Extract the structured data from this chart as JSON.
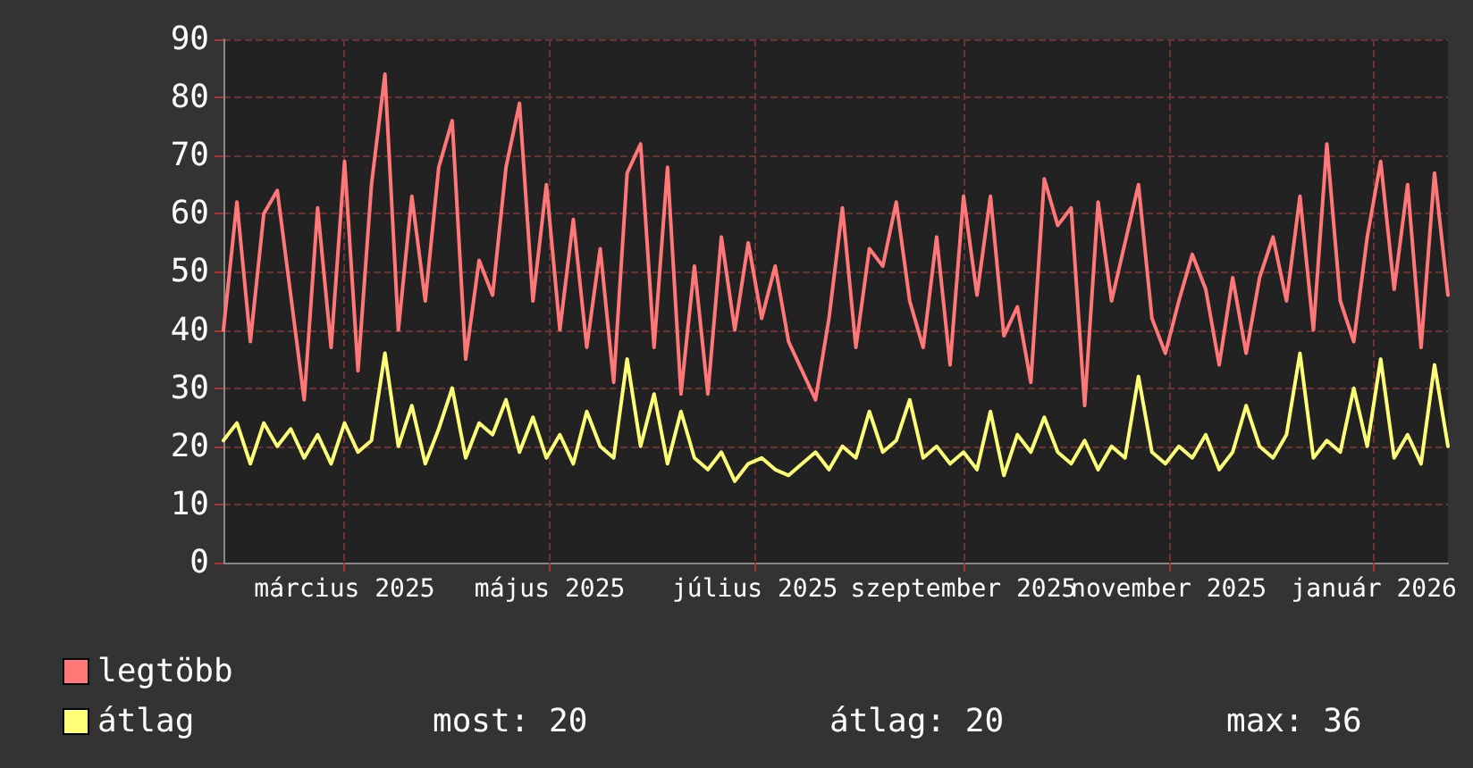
{
  "chart_data": {
    "type": "line",
    "x": [
      "2025-01-24",
      "2025-01-28",
      "2025-02-01",
      "2025-02-05",
      "2025-02-09",
      "2025-02-13",
      "2025-02-17",
      "2025-02-21",
      "2025-02-25",
      "2025-03-01",
      "2025-03-05",
      "2025-03-09",
      "2025-03-13",
      "2025-03-17",
      "2025-03-21",
      "2025-03-25",
      "2025-03-29",
      "2025-04-02",
      "2025-04-06",
      "2025-04-10",
      "2025-04-14",
      "2025-04-18",
      "2025-04-22",
      "2025-04-26",
      "2025-04-30",
      "2025-05-04",
      "2025-05-08",
      "2025-05-12",
      "2025-05-16",
      "2025-05-20",
      "2025-05-24",
      "2025-05-28",
      "2025-06-01",
      "2025-06-05",
      "2025-06-09",
      "2025-06-13",
      "2025-06-17",
      "2025-06-21",
      "2025-06-25",
      "2025-06-29",
      "2025-07-03",
      "2025-07-07",
      "2025-07-11",
      "2025-07-15",
      "2025-07-19",
      "2025-07-23",
      "2025-07-27",
      "2025-07-31",
      "2025-08-04",
      "2025-08-08",
      "2025-08-12",
      "2025-08-16",
      "2025-08-20",
      "2025-08-24",
      "2025-08-28",
      "2025-09-01",
      "2025-09-05",
      "2025-09-09",
      "2025-09-13",
      "2025-09-17",
      "2025-09-21",
      "2025-09-25",
      "2025-09-29",
      "2025-10-03",
      "2025-10-07",
      "2025-10-11",
      "2025-10-15",
      "2025-10-19",
      "2025-10-23",
      "2025-10-27",
      "2025-10-31",
      "2025-11-04",
      "2025-11-08",
      "2025-11-12",
      "2025-11-16",
      "2025-11-20",
      "2025-11-24",
      "2025-11-28",
      "2025-12-02",
      "2025-12-06",
      "2025-12-10",
      "2025-12-14",
      "2025-12-18",
      "2025-12-22",
      "2025-12-26",
      "2025-12-30",
      "2026-01-03",
      "2026-01-07",
      "2026-01-11",
      "2026-01-15",
      "2026-01-19",
      "2026-01-23"
    ],
    "series": [
      {
        "name": "legtöbb",
        "color": "#ff7777",
        "values": [
          40,
          62,
          38,
          60,
          64,
          46,
          28,
          61,
          37,
          69,
          33,
          65,
          84,
          40,
          63,
          45,
          68,
          76,
          35,
          52,
          46,
          68,
          79,
          45,
          65,
          40,
          59,
          37,
          54,
          31,
          67,
          72,
          37,
          68,
          29,
          51,
          29,
          56,
          40,
          55,
          42,
          51,
          38,
          33,
          28,
          42,
          61,
          37,
          54,
          51,
          62,
          45,
          37,
          56,
          34,
          63,
          46,
          63,
          39,
          44,
          31,
          66,
          58,
          61,
          27,
          62,
          45,
          55,
          65,
          42,
          36,
          45,
          53,
          47,
          34,
          49,
          36,
          49,
          56,
          45,
          63,
          40,
          72,
          45,
          38,
          56,
          69,
          47,
          65,
          37,
          67,
          46
        ]
      },
      {
        "name": "átlag",
        "color": "#ffff77",
        "values": [
          21,
          24,
          17,
          24,
          20,
          23,
          18,
          22,
          17,
          24,
          19,
          21,
          36,
          20,
          27,
          17,
          23,
          30,
          18,
          24,
          22,
          28,
          19,
          25,
          18,
          22,
          17,
          26,
          20,
          18,
          35,
          20,
          29,
          17,
          26,
          18,
          16,
          19,
          14,
          17,
          18,
          16,
          15,
          17,
          19,
          16,
          20,
          18,
          26,
          19,
          21,
          28,
          18,
          20,
          17,
          19,
          16,
          26,
          15,
          22,
          19,
          25,
          19,
          17,
          21,
          16,
          20,
          18,
          32,
          19,
          17,
          20,
          18,
          22,
          16,
          19,
          27,
          20,
          18,
          22,
          36,
          18,
          21,
          19,
          30,
          20,
          35,
          18,
          22,
          17,
          34,
          20
        ]
      }
    ],
    "xlim": [
      "2025-01-24",
      "2026-01-23"
    ],
    "xticks": [
      {
        "value": "2025-03-01",
        "label": "március 2025"
      },
      {
        "value": "2025-05-01",
        "label": "május 2025"
      },
      {
        "value": "2025-07-01",
        "label": "július 2025"
      },
      {
        "value": "2025-09-01",
        "label": "szeptember 2025"
      },
      {
        "value": "2025-11-01",
        "label": "november 2025"
      },
      {
        "value": "2026-01-01",
        "label": "január 2026"
      }
    ],
    "ylim": [
      0,
      90
    ],
    "yticks": [
      0,
      10,
      20,
      30,
      40,
      50,
      60,
      70,
      80,
      90
    ],
    "grid": true,
    "legend": "bottom left",
    "marker": "none",
    "line_style": "solid",
    "annotations": [
      "most: 20",
      "átlag: 20",
      "max: 36"
    ]
  }
}
